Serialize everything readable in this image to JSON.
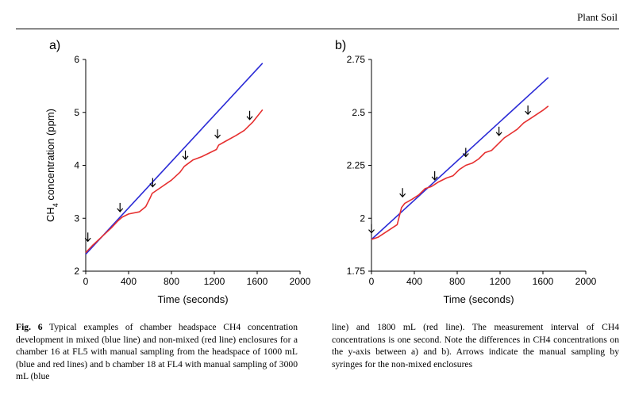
{
  "header": {
    "journal": "Plant Soil"
  },
  "chart_data": [
    {
      "panel": "a)",
      "type": "line",
      "xlabel": "Time (seconds)",
      "ylabel": "CH4 concentration (ppm)",
      "xlim": [
        0,
        2000
      ],
      "ylim": [
        2,
        6
      ],
      "xticks": [
        "0",
        "400",
        "800",
        "1200",
        "1600",
        "2000"
      ],
      "yticks": [
        "2",
        "3",
        "4",
        "5",
        "6"
      ],
      "series": [
        {
          "color": "#2b2bd6",
          "x": [
            0,
            1650
          ],
          "y": [
            2.32,
            5.93
          ]
        },
        {
          "color": "#e63030",
          "x": [
            0,
            60,
            150,
            240,
            300,
            340,
            400,
            500,
            560,
            600,
            620,
            700,
            800,
            880,
            920,
            960,
            1000,
            1080,
            1160,
            1220,
            1240,
            1300,
            1400,
            1480,
            1520,
            1560,
            1650
          ],
          "y": [
            2.35,
            2.48,
            2.65,
            2.82,
            2.95,
            3.02,
            3.08,
            3.12,
            3.22,
            3.38,
            3.47,
            3.58,
            3.72,
            3.87,
            3.98,
            4.04,
            4.1,
            4.16,
            4.24,
            4.3,
            4.38,
            4.45,
            4.56,
            4.66,
            4.74,
            4.82,
            5.05
          ]
        }
      ],
      "arrows": [
        {
          "x": 20,
          "y": 2.52
        },
        {
          "x": 320,
          "y": 3.08
        },
        {
          "x": 625,
          "y": 3.55
        },
        {
          "x": 930,
          "y": 4.07
        },
        {
          "x": 1230,
          "y": 4.47
        },
        {
          "x": 1530,
          "y": 4.82
        }
      ]
    },
    {
      "panel": "b)",
      "type": "line",
      "xlabel": "Time (seconds)",
      "ylabel": "",
      "xlim": [
        0,
        2000
      ],
      "ylim": [
        1.75,
        2.75
      ],
      "xticks": [
        "0",
        "400",
        "800",
        "1200",
        "1600",
        "2000"
      ],
      "yticks": [
        "1.75",
        "2",
        "2.25",
        "2.5",
        "2.75"
      ],
      "series": [
        {
          "color": "#2b2bd6",
          "x": [
            0,
            1650
          ],
          "y": [
            1.9,
            2.665
          ]
        },
        {
          "color": "#e63030",
          "x": [
            0,
            60,
            150,
            240,
            280,
            310,
            380,
            440,
            500,
            560,
            620,
            700,
            760,
            820,
            880,
            940,
            1000,
            1060,
            1120,
            1180,
            1240,
            1300,
            1360,
            1420,
            1480,
            1540,
            1600,
            1650
          ],
          "y": [
            1.9,
            1.91,
            1.94,
            1.97,
            2.05,
            2.07,
            2.09,
            2.11,
            2.14,
            2.15,
            2.17,
            2.19,
            2.2,
            2.23,
            2.25,
            2.26,
            2.28,
            2.31,
            2.32,
            2.35,
            2.38,
            2.4,
            2.42,
            2.45,
            2.47,
            2.49,
            2.51,
            2.53
          ]
        }
      ],
      "arrows": [
        {
          "x": 0,
          "y": 1.92
        },
        {
          "x": 290,
          "y": 2.09
        },
        {
          "x": 590,
          "y": 2.17
        },
        {
          "x": 880,
          "y": 2.28
        },
        {
          "x": 1190,
          "y": 2.38
        },
        {
          "x": 1460,
          "y": 2.48
        }
      ]
    }
  ],
  "caption": {
    "label": "Fig. 6",
    "left_text": " Typical examples of chamber headspace CH4 concentration development in mixed (blue line) and non-mixed (red line) enclosures for a chamber 16 at FL5 with manual sampling from the headspace of 1000 mL (blue and red lines) and b chamber 18 at FL4 with manual sampling of 3000 mL (blue",
    "right_text": "line) and 1800 mL (red line). The measurement interval of CH4 concentrations is one second. Note the differences in CH4 concentrations on the y-axis between a) and b). Arrows indicate the manual sampling by syringes for the non-mixed enclosures"
  }
}
